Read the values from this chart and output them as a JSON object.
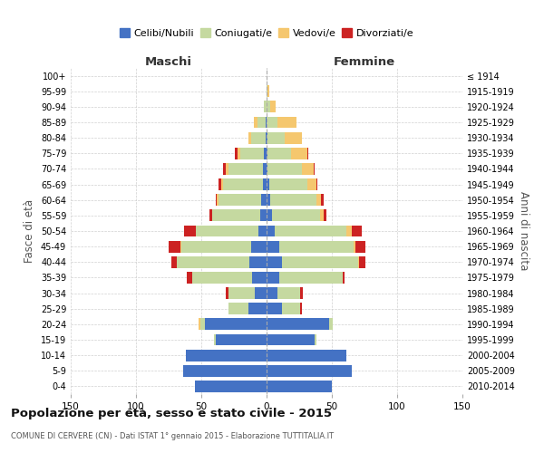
{
  "age_groups": [
    "0-4",
    "5-9",
    "10-14",
    "15-19",
    "20-24",
    "25-29",
    "30-34",
    "35-39",
    "40-44",
    "45-49",
    "50-54",
    "55-59",
    "60-64",
    "65-69",
    "70-74",
    "75-79",
    "80-84",
    "85-89",
    "90-94",
    "95-99",
    "100+"
  ],
  "birth_years": [
    "2010-2014",
    "2005-2009",
    "2000-2004",
    "1995-1999",
    "1990-1994",
    "1985-1989",
    "1980-1984",
    "1975-1979",
    "1970-1974",
    "1965-1969",
    "1960-1964",
    "1955-1959",
    "1950-1954",
    "1945-1949",
    "1940-1944",
    "1935-1939",
    "1930-1934",
    "1925-1929",
    "1920-1924",
    "1915-1919",
    "≤ 1914"
  ],
  "colors": {
    "celibi": "#4472C4",
    "coniugati": "#C5D9A0",
    "vedovi": "#F5C76E",
    "divorziati": "#CC2222"
  },
  "maschi": {
    "celibi": [
      55,
      64,
      62,
      39,
      47,
      14,
      9,
      11,
      13,
      12,
      6,
      5,
      4,
      3,
      3,
      2,
      1,
      1,
      0,
      0,
      0
    ],
    "coniugati": [
      0,
      0,
      0,
      1,
      4,
      15,
      20,
      46,
      56,
      53,
      48,
      37,
      33,
      30,
      26,
      18,
      11,
      6,
      2,
      0,
      0
    ],
    "vedovi": [
      0,
      0,
      0,
      0,
      1,
      0,
      0,
      0,
      0,
      1,
      0,
      0,
      1,
      2,
      2,
      2,
      2,
      3,
      0,
      0,
      0
    ],
    "divorziati": [
      0,
      0,
      0,
      0,
      0,
      0,
      2,
      4,
      4,
      9,
      9,
      2,
      1,
      2,
      2,
      2,
      0,
      0,
      0,
      0,
      0
    ]
  },
  "femmine": {
    "celibi": [
      50,
      65,
      61,
      37,
      48,
      12,
      8,
      10,
      12,
      10,
      6,
      4,
      3,
      2,
      1,
      1,
      1,
      0,
      0,
      0,
      0
    ],
    "coniugati": [
      0,
      0,
      0,
      1,
      3,
      14,
      18,
      48,
      58,
      57,
      55,
      37,
      35,
      29,
      26,
      18,
      13,
      8,
      3,
      1,
      0
    ],
    "vedovi": [
      0,
      0,
      0,
      0,
      0,
      0,
      0,
      0,
      1,
      1,
      4,
      3,
      4,
      7,
      9,
      12,
      13,
      15,
      4,
      1,
      0
    ],
    "divorziati": [
      0,
      0,
      0,
      0,
      0,
      1,
      2,
      2,
      5,
      8,
      8,
      2,
      2,
      1,
      1,
      1,
      0,
      0,
      0,
      0,
      0
    ]
  },
  "title": "Popolazione per età, sesso e stato civile - 2015",
  "subtitle": "COMUNE DI CERVERE (CN) - Dati ISTAT 1° gennaio 2015 - Elaborazione TUTTITALIA.IT",
  "xlabel_left": "Maschi",
  "xlabel_right": "Femmine",
  "ylabel_left": "Fasce di età",
  "ylabel_right": "Anni di nascita",
  "legend_labels": [
    "Celibi/Nubili",
    "Coniugati/e",
    "Vedovi/e",
    "Divorziati/e"
  ],
  "xlim": 150,
  "bg_color": "#FFFFFF",
  "grid_color": "#CCCCCC",
  "bar_height": 0.75
}
